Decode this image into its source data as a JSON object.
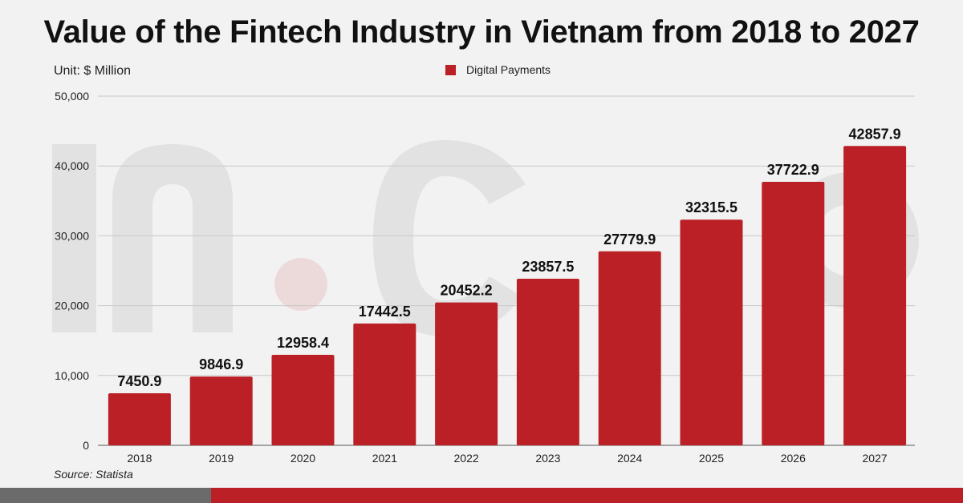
{
  "title": "Value of the Fintech Industry in Vietnam from 2018 to 2027",
  "unit_label": "Unit: $ Million",
  "source": "Source: Statista",
  "colors": {
    "bar": "#bb2026",
    "accent_gray": "#6b6b6b",
    "grid": "#c8c8c8"
  },
  "chart_data": {
    "type": "bar",
    "categories": [
      "2018",
      "2019",
      "2020",
      "2021",
      "2022",
      "2023",
      "2024",
      "2025",
      "2026",
      "2027"
    ],
    "series": [
      {
        "name": "Digital Payments",
        "values": [
          7450.9,
          9846.9,
          12958.4,
          17442.5,
          20452.2,
          23857.5,
          27779.9,
          32315.5,
          37722.9,
          42857.9
        ],
        "labels": [
          "7450.9",
          "9846.9",
          "12958.4",
          "17442.5",
          "20452.2",
          "23857.5",
          "27779.9",
          "32315.5",
          "37722.9",
          "42857.9"
        ]
      }
    ],
    "ylim": [
      0,
      50000
    ],
    "yticks": [
      0,
      10000,
      20000,
      30000,
      40000,
      50000
    ],
    "ytick_labels": [
      "0",
      "10,000",
      "20,000",
      "30,000",
      "40,000",
      "50,000"
    ],
    "grid": true,
    "legend_position": "top-center"
  }
}
